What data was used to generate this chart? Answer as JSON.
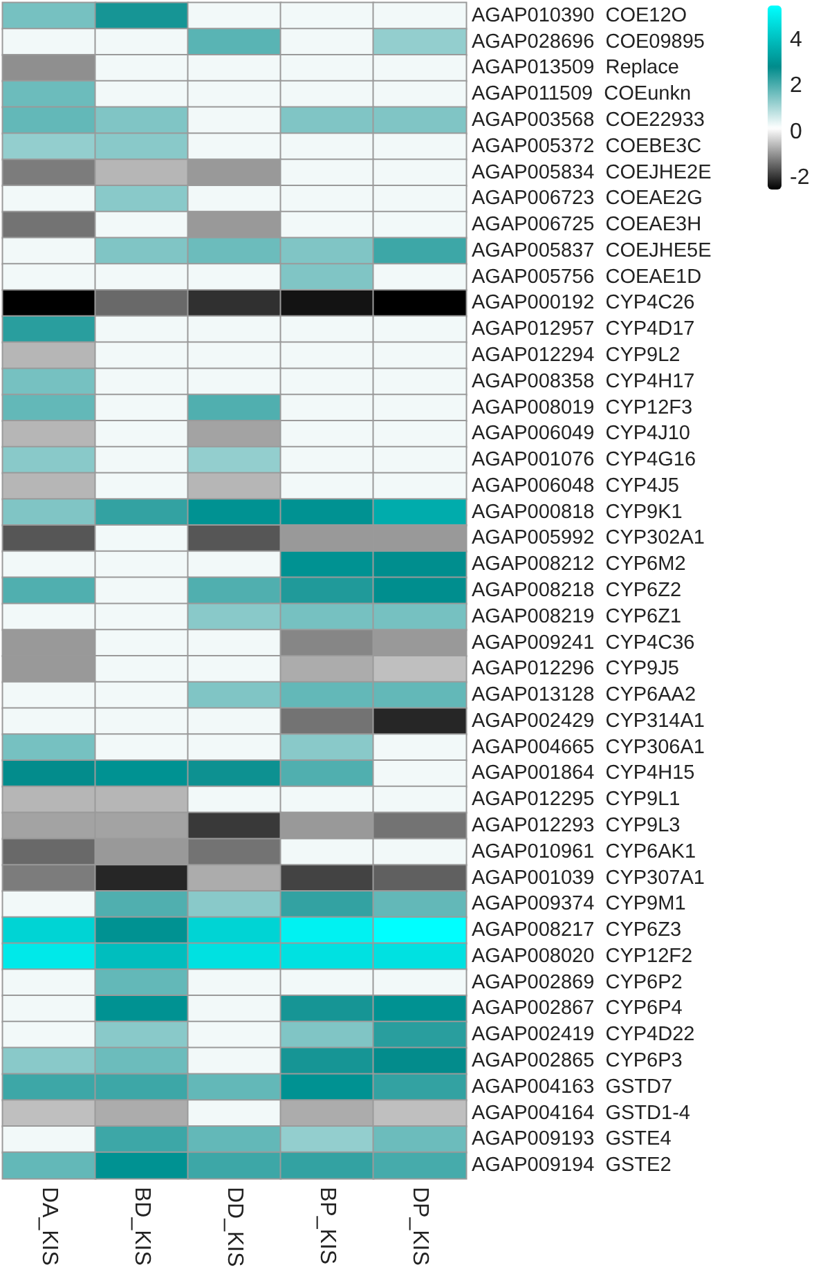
{
  "chart_data": {
    "type": "heatmap",
    "categories": [
      "DA_KIS",
      "BD_KIS",
      "DD_KIS",
      "BP_KIS",
      "DP_KIS"
    ],
    "y_categories": [
      "AGAP010390  COE12O",
      "AGAP028696  COE09895",
      "AGAP013509  Replace",
      "AGAP011509  COEunkn",
      "AGAP003568  COE22933",
      "AGAP005372  COEBE3C",
      "AGAP005834  COEJHE2E",
      "AGAP006723  COEAE2G",
      "AGAP006725  COEAE3H",
      "AGAP005837  COEJHE5E",
      "AGAP005756  COEAE1D",
      "AGAP000192  CYP4C26",
      "AGAP012957  CYP4D17",
      "AGAP012294  CYP9L2",
      "AGAP008358  CYP4H17",
      "AGAP008019  CYP12F3",
      "AGAP006049  CYP4J10",
      "AGAP001076  CYP4G16",
      "AGAP006048  CYP4J5",
      "AGAP000818  CYP9K1",
      "AGAP005992  CYP302A1",
      "AGAP008212  CYP6M2",
      "AGAP008218  CYP6Z2",
      "AGAP008219  CYP6Z1",
      "AGAP009241  CYP4C36",
      "AGAP012296  CYP9J5",
      "AGAP013128  CYP6AA2",
      "AGAP002429  CYP314A1",
      "AGAP004665  CYP306A1",
      "AGAP001864  CYP4H15",
      "AGAP012295  CYP9L1",
      "AGAP012293  CYP9L3",
      "AGAP010961  CYP6AK1",
      "AGAP001039  CYP307A1",
      "AGAP009374  CYP9M1",
      "AGAP008217  CYP6Z3",
      "AGAP008020  CYP12F2",
      "AGAP002869  CYP6P2",
      "AGAP002867  CYP6P4",
      "AGAP002419  CYP4D22",
      "AGAP002865  CYP6P3",
      "AGAP004163  GSTD7",
      "AGAP004164  GSTD1-4",
      "AGAP009193  GSTE4",
      "AGAP009194  GSTE2"
    ],
    "cells": [
      [
        1.6,
        2.6,
        0.3,
        0.3,
        0.3
      ],
      [
        0.3,
        0.3,
        1.9,
        0.3,
        1.3
      ],
      [
        -1,
        0.3,
        0.3,
        0.3,
        0.3
      ],
      [
        1.7,
        0.3,
        0.3,
        0.3,
        0.3
      ],
      [
        1.8,
        1.5,
        0.3,
        1.5,
        1.5
      ],
      [
        1.3,
        1.4,
        0.3,
        0.3,
        0.3
      ],
      [
        -1.2,
        -0.6,
        -0.9,
        0.3,
        0.3
      ],
      [
        0.3,
        1.4,
        0.3,
        0.3,
        0.3
      ],
      [
        -1.3,
        0.3,
        -0.9,
        0.3,
        0.3
      ],
      [
        0.3,
        1.5,
        1.7,
        1.5,
        2.2
      ],
      [
        0.3,
        0.3,
        0.3,
        1.5,
        0.3
      ],
      [
        -2.5,
        -1.4,
        -2,
        -2.3,
        -2.5
      ],
      [
        2.4,
        0.3,
        0.3,
        0.3,
        0.3
      ],
      [
        -0.6,
        0.3,
        0.3,
        0.3,
        0.3
      ],
      [
        1.6,
        0.3,
        0.3,
        0.3,
        0.3
      ],
      [
        1.8,
        0.3,
        2,
        0.3,
        0.3
      ],
      [
        -0.6,
        0.3,
        -0.8,
        0.3,
        0.3
      ],
      [
        1.4,
        0.3,
        1.3,
        0.3,
        0.3
      ],
      [
        -0.6,
        0.3,
        -0.6,
        0.3,
        0.3
      ],
      [
        1.5,
        2.3,
        3,
        3,
        3.6
      ],
      [
        -1.6,
        0.3,
        -1.6,
        -0.9,
        -0.9
      ],
      [
        0.3,
        0.3,
        0.3,
        3,
        2.9
      ],
      [
        2,
        0.3,
        2,
        2.5,
        2.9
      ],
      [
        0.3,
        0.3,
        1.4,
        1.6,
        1.6
      ],
      [
        -0.9,
        0.3,
        0.3,
        -1.1,
        -0.9
      ],
      [
        -0.9,
        0.3,
        0.3,
        -0.7,
        -0.5
      ],
      [
        0.3,
        0.3,
        1.5,
        1.8,
        1.8
      ],
      [
        0.3,
        0.3,
        0.3,
        -1.3,
        -2.1
      ],
      [
        1.6,
        0.3,
        0.3,
        1.4,
        0.3
      ],
      [
        2.8,
        3,
        2.7,
        2,
        0.3
      ],
      [
        -0.6,
        -0.6,
        0.3,
        0.3,
        0.3
      ],
      [
        -0.8,
        -0.8,
        -1.9,
        -0.9,
        -1.3
      ],
      [
        -1.4,
        -0.9,
        -1.3,
        0.3,
        0.3
      ],
      [
        -1.2,
        -2.1,
        -0.7,
        -1.8,
        -1.5
      ],
      [
        0.3,
        2,
        1.4,
        2.3,
        1.8
      ],
      [
        4.5,
        3,
        4.5,
        5.2,
        5.5
      ],
      [
        5,
        4,
        4.8,
        4.8,
        4.8
      ],
      [
        0.3,
        1.8,
        0.3,
        0.3,
        0.3
      ],
      [
        0.3,
        3,
        0.3,
        2.6,
        3
      ],
      [
        0.3,
        1.4,
        0.3,
        1.5,
        2.4
      ],
      [
        1.4,
        1.7,
        0.3,
        2.6,
        2.8
      ],
      [
        2.2,
        2.2,
        1.8,
        3,
        2.3
      ],
      [
        -0.5,
        -0.7,
        0.3,
        -0.7,
        -0.5
      ],
      [
        0.3,
        2.2,
        1.8,
        1.3,
        1.7
      ],
      [
        1.8,
        3,
        2.2,
        2.3,
        2.1
      ]
    ],
    "clim": [
      -2.5,
      5.5
    ],
    "cticks": [
      -2,
      0,
      2,
      4
    ]
  }
}
